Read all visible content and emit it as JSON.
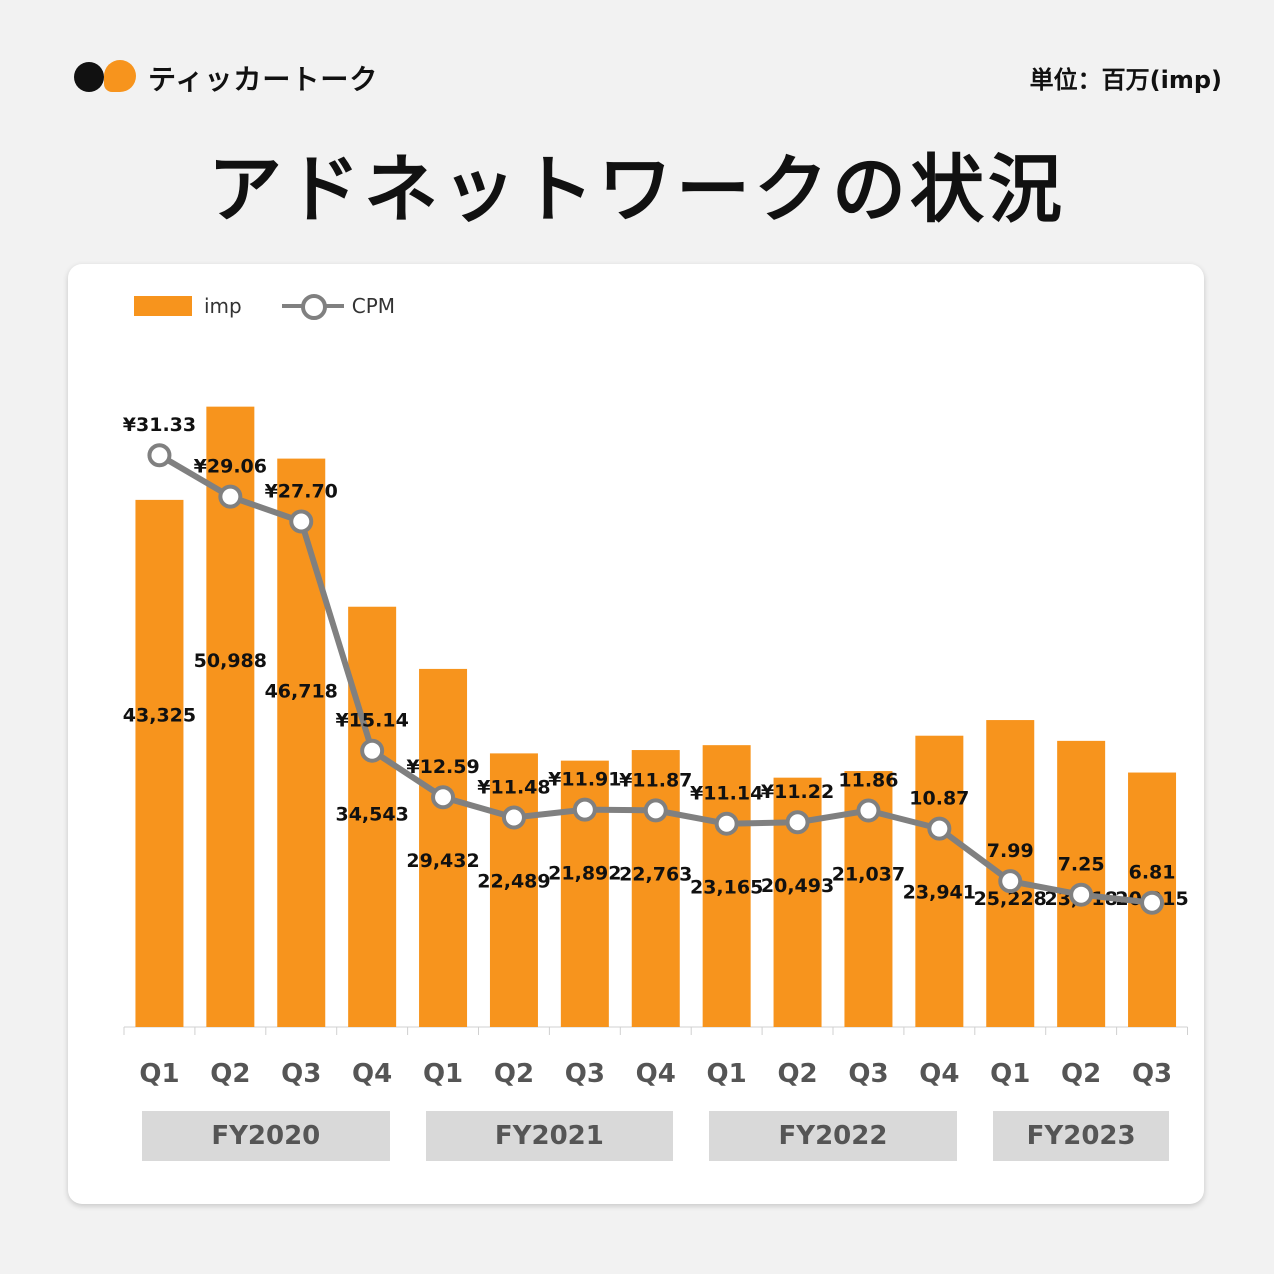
{
  "brand": {
    "name": "ティッカートーク"
  },
  "unit_label": "単位：百万(imp)",
  "title": "アドネットワークの状況",
  "legend": {
    "bar_label": "imp",
    "line_label": "CPM"
  },
  "colors": {
    "bar": "#f7941d",
    "line": "#808080",
    "fy_box": "#d9d9d9"
  },
  "chart_data": {
    "type": "bar",
    "categories": [
      "Q1",
      "Q2",
      "Q3",
      "Q4",
      "Q1",
      "Q2",
      "Q3",
      "Q4",
      "Q1",
      "Q2",
      "Q3",
      "Q4",
      "Q1",
      "Q2",
      "Q3"
    ],
    "groups": [
      {
        "label": "FY2020",
        "count": 4
      },
      {
        "label": "FY2021",
        "count": 4
      },
      {
        "label": "FY2022",
        "count": 4
      },
      {
        "label": "FY2023",
        "count": 3
      }
    ],
    "series": [
      {
        "name": "imp",
        "type": "bar",
        "values": [
          43325,
          50988,
          46718,
          34543,
          29432,
          22489,
          21892,
          22763,
          23165,
          20493,
          21037,
          23941,
          25228,
          23518,
          20915
        ],
        "labels": [
          "43,325",
          "50,988",
          "46,718",
          "34,543",
          "29,432",
          "22,489",
          "21,892",
          "22,763",
          "23,165",
          "20,493",
          "21,037",
          "23,941",
          "25,228",
          "23,518",
          "20,915"
        ]
      },
      {
        "name": "CPM",
        "type": "line",
        "values": [
          31.33,
          29.06,
          27.7,
          15.14,
          12.59,
          11.48,
          11.91,
          11.87,
          11.14,
          11.22,
          11.86,
          10.87,
          7.99,
          7.25,
          6.81
        ],
        "labels": [
          "¥31.33",
          "¥29.06",
          "¥27.70",
          "¥15.14",
          "¥12.59",
          "¥11.48",
          "¥11.91",
          "¥11.87",
          "¥11.14",
          "¥11.22",
          "11.86",
          "10.87",
          "7.99",
          "7.25",
          "6.81"
        ]
      }
    ],
    "ylim": [
      0,
      54000
    ],
    "y2lim": [
      0,
      36
    ],
    "grid": false,
    "legend_position": "top-left"
  }
}
